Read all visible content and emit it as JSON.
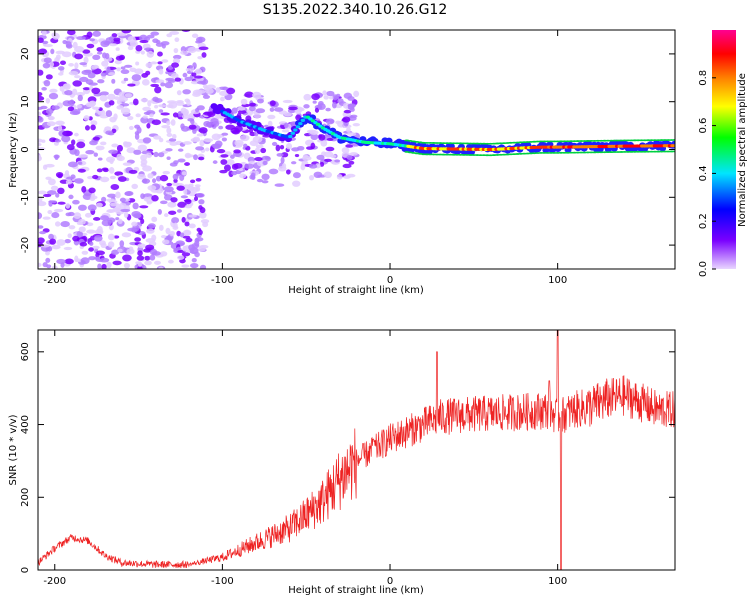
{
  "title": "S135.2022.340.10.26.G12",
  "chart_data": [
    {
      "type": "heatmap",
      "xlabel": "Height of straight line (km)",
      "ylabel": "Frequency (Hz)",
      "xlim": [
        -210,
        170
      ],
      "ylim": [
        -25,
        25
      ],
      "xticks": [
        -200,
        -100,
        0,
        100
      ],
      "yticks": [
        -20,
        -10,
        0,
        10,
        20
      ],
      "colorbar": {
        "label": "Normalized spectral amplitude",
        "range": [
          0,
          1
        ],
        "ticks": [
          "0.0",
          "0.2",
          "0.4",
          "0.6",
          "0.8"
        ],
        "ticks_values": [
          0,
          0.2,
          0.4,
          0.6,
          0.8
        ],
        "colors": [
          "#e9d6ff",
          "#7a00ff",
          "#0000ff",
          "#00e5ff",
          "#00ff00",
          "#ffff00",
          "#ff8000",
          "#ff0000",
          "#ff0090"
        ]
      },
      "ridge": {
        "description_points": [
          [
            -105,
            9
          ],
          [
            -90,
            6
          ],
          [
            -75,
            4
          ],
          [
            -60,
            2.5
          ],
          [
            -50,
            7
          ],
          [
            -40,
            4.5
          ],
          [
            -30,
            2.5
          ],
          [
            -15,
            1.5
          ],
          [
            0,
            1.2
          ],
          [
            20,
            0.2
          ],
          [
            60,
            0
          ],
          [
            90,
            0.5
          ],
          [
            100,
            0.5
          ],
          [
            140,
            0.7
          ],
          [
            170,
            0.8
          ]
        ],
        "peak_amplitude": 0.9
      }
    },
    {
      "type": "line",
      "xlabel": "Height of straight line (km)",
      "ylabel": "SNR (10 * v/v)",
      "xlim": [
        -210,
        170
      ],
      "ylim": [
        0,
        660
      ],
      "xticks": [
        -200,
        -100,
        0,
        100
      ],
      "yticks": [
        0,
        200,
        400,
        600
      ],
      "color": "#ee2222",
      "envelope": [
        [
          -210,
          20
        ],
        [
          -200,
          60
        ],
        [
          -190,
          90
        ],
        [
          -180,
          80
        ],
        [
          -170,
          40
        ],
        [
          -160,
          20
        ],
        [
          -140,
          15
        ],
        [
          -120,
          15
        ],
        [
          -110,
          25
        ],
        [
          -100,
          35
        ],
        [
          -90,
          55
        ],
        [
          -80,
          75
        ],
        [
          -70,
          95
        ],
        [
          -60,
          115
        ],
        [
          -50,
          150
        ],
        [
          -40,
          190
        ],
        [
          -30,
          250
        ],
        [
          -20,
          300
        ],
        [
          -10,
          330
        ],
        [
          0,
          360
        ],
        [
          10,
          380
        ],
        [
          20,
          400
        ],
        [
          30,
          420
        ],
        [
          40,
          425
        ],
        [
          60,
          430
        ],
        [
          80,
          435
        ],
        [
          95,
          440
        ],
        [
          100,
          420
        ],
        [
          110,
          440
        ],
        [
          120,
          450
        ],
        [
          130,
          470
        ],
        [
          140,
          480
        ],
        [
          150,
          460
        ],
        [
          160,
          440
        ],
        [
          170,
          440
        ]
      ],
      "spikes": [
        [
          -10,
          360
        ],
        [
          28,
          600
        ],
        [
          95,
          520
        ],
        [
          100,
          660
        ],
        [
          102,
          0
        ]
      ]
    }
  ]
}
